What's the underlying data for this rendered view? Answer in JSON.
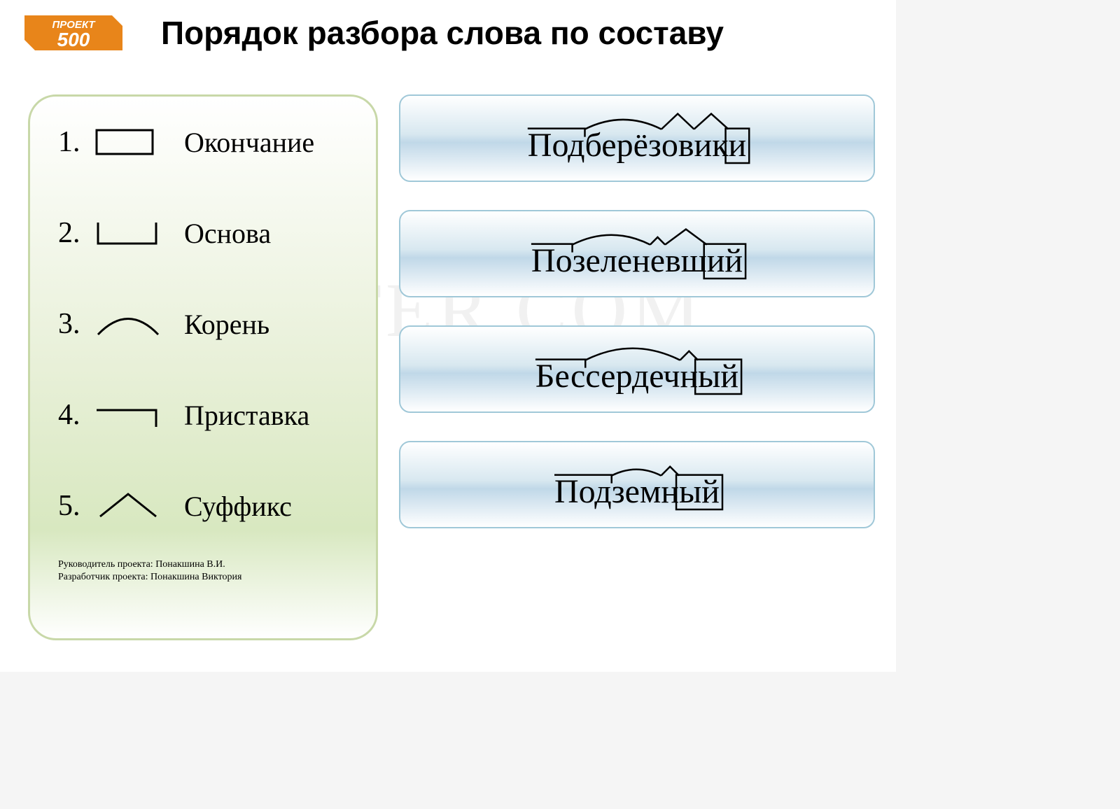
{
  "title": "Порядок разбора слова по составу",
  "logo": {
    "line1": "ПРОЕКТ",
    "line2": "500",
    "bg": "#e8851a",
    "fg": "#ffffff"
  },
  "legend": [
    {
      "num": "1.",
      "type": "ending",
      "label": "Окончание"
    },
    {
      "num": "2.",
      "type": "base",
      "label": "Основа"
    },
    {
      "num": "3.",
      "type": "root",
      "label": "Корень"
    },
    {
      "num": "4.",
      "type": "prefix",
      "label": "Приставка"
    },
    {
      "num": "5.",
      "type": "suffix",
      "label": "Суффикс"
    }
  ],
  "credits": {
    "line1": "Руководитель проекта: Понакшина В.И.",
    "line2": "Разработчик проекта: Понакшина Виктория"
  },
  "watermark": "DIPOSTER.COM",
  "words": [
    {
      "text": "Подберёзовики",
      "parts": [
        {
          "t": "Под",
          "marks": [
            "prefix"
          ]
        },
        {
          "t": "берёз",
          "marks": [
            "root"
          ]
        },
        {
          "t": "ов",
          "marks": [
            "suffix"
          ]
        },
        {
          "t": "ик",
          "marks": [
            "suffix"
          ]
        },
        {
          "t": "и",
          "marks": [
            "ending"
          ]
        }
      ]
    },
    {
      "text": "Позеленевший",
      "parts": [
        {
          "t": "По",
          "marks": [
            "prefix"
          ]
        },
        {
          "t": "зелен",
          "marks": [
            "root"
          ]
        },
        {
          "t": "е",
          "marks": [
            "suffix"
          ]
        },
        {
          "t": "вш",
          "marks": [
            "suffix"
          ]
        },
        {
          "t": "ий",
          "marks": [
            "ending"
          ]
        }
      ]
    },
    {
      "text": "Бессердечный",
      "parts": [
        {
          "t": "Бес",
          "marks": [
            "prefix"
          ]
        },
        {
          "t": "сердеч",
          "marks": [
            "root"
          ]
        },
        {
          "t": "н",
          "marks": [
            "suffix"
          ]
        },
        {
          "t": "ый",
          "marks": [
            "ending"
          ]
        }
      ]
    },
    {
      "text": "Подземный",
      "parts": [
        {
          "t": "Под",
          "marks": [
            "prefix"
          ]
        },
        {
          "t": "зем",
          "marks": [
            "root"
          ]
        },
        {
          "t": "н",
          "marks": [
            "suffix"
          ]
        },
        {
          "t": "ый",
          "marks": [
            "ending"
          ]
        }
      ]
    }
  ],
  "style": {
    "word_font": "Georgia, serif",
    "word_size": 48,
    "stroke": "#000000",
    "stroke_width": 2.5,
    "card_border": "#a0c8d8",
    "card_grad_top": "#ffffff",
    "card_grad_mid": "#c8dce8",
    "panel_border": "#c8d8a8",
    "panel_grad": "#e0ecd0"
  }
}
